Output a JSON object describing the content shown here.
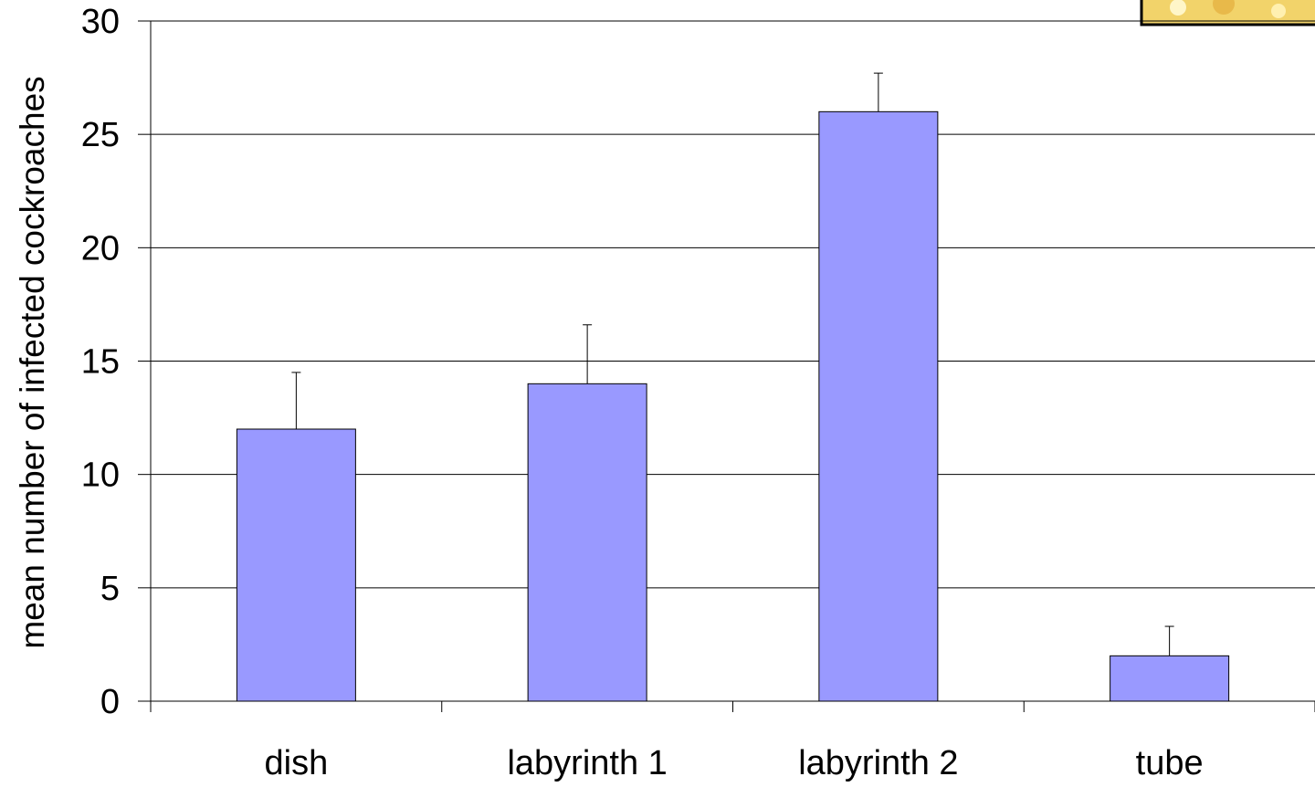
{
  "chart_data": {
    "type": "bar",
    "title": "",
    "xlabel": "",
    "ylabel": "mean number of infected cockroaches",
    "categories": [
      "dish",
      "labyrinth 1",
      "labyrinth 2",
      "tube"
    ],
    "values": [
      12,
      14,
      26,
      2
    ],
    "error_bars": [
      2.5,
      2.6,
      1.7,
      1.3
    ],
    "ylim": [
      0,
      30
    ],
    "yticks": [
      0,
      5,
      10,
      15,
      20,
      25,
      30
    ],
    "grid": true,
    "legend": "none",
    "colors": {
      "bar_fill": "#9999ff",
      "bar_stroke": "#000000",
      "grid": "#000000",
      "photo_inset": "#f2d36a"
    }
  }
}
